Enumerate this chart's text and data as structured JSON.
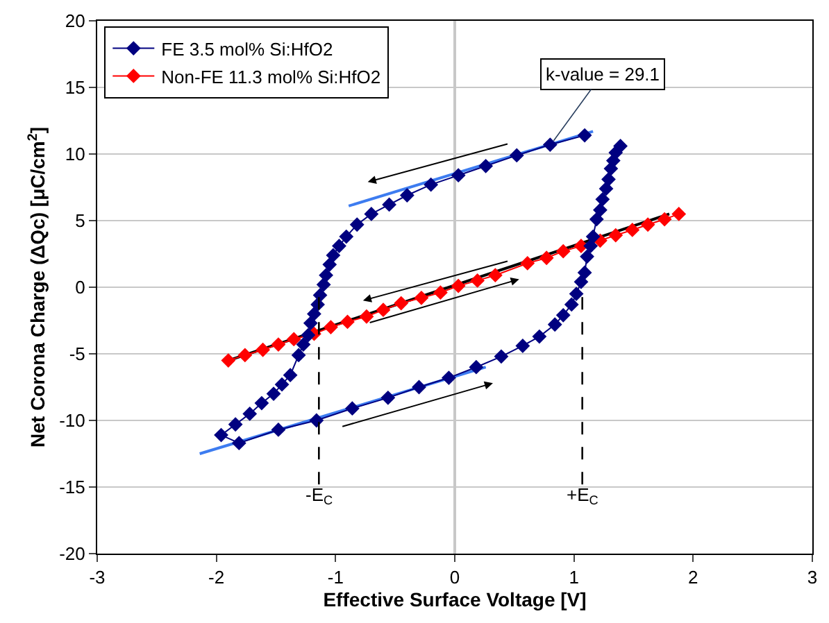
{
  "chart_data": {
    "type": "line",
    "xlabel": "Effective Surface Voltage [V]",
    "ylabel": "Net Corona Charge (ΔQc) [μC/cm$^{2}$]",
    "xlim": [
      -3,
      3
    ],
    "xticks": [
      -3,
      -2,
      -1,
      0,
      1,
      2,
      3
    ],
    "ylim": [
      -20,
      20
    ],
    "yticks": [
      -20,
      -15,
      -10,
      -5,
      0,
      5,
      10,
      15,
      20
    ],
    "grid": "y",
    "legend": "top left",
    "marker": "diamond",
    "line_style": "solid",
    "series": [
      {
        "name": "FE 3.5 mol% Si:HfO2",
        "color": "#000080",
        "x": [
          1.09,
          0.8,
          0.52,
          0.26,
          0.03,
          -0.2,
          -0.4,
          -0.55,
          -0.7,
          -0.82,
          -0.91,
          -0.97,
          -1.02,
          -1.05,
          -1.08,
          -1.1,
          -1.13,
          -1.15,
          -1.18,
          -1.21,
          -1.23,
          -1.27,
          -1.31,
          -1.38,
          -1.45,
          -1.52,
          -1.62,
          -1.72,
          -1.84,
          -1.96,
          -1.81,
          -1.48,
          -1.16,
          -0.86,
          -0.56,
          -0.3,
          -0.05,
          0.18,
          0.39,
          0.57,
          0.71,
          0.84,
          0.91,
          0.98,
          1.02,
          1.06,
          1.09,
          1.11,
          1.14,
          1.16,
          1.19,
          1.22,
          1.24,
          1.27,
          1.29,
          1.31,
          1.33,
          1.35,
          1.39
        ],
        "values": [
          11.4,
          10.7,
          9.9,
          9.1,
          8.4,
          7.7,
          6.9,
          6.2,
          5.5,
          4.7,
          3.8,
          3.1,
          2.4,
          1.7,
          0.9,
          0.2,
          -0.6,
          -1.3,
          -2.0,
          -2.7,
          -3.6,
          -4.3,
          -5.1,
          -6.6,
          -7.3,
          -8.0,
          -8.7,
          -9.5,
          -10.3,
          -11.1,
          -11.7,
          -10.7,
          -10.0,
          -9.1,
          -8.3,
          -7.5,
          -6.8,
          -6.0,
          -5.2,
          -4.4,
          -3.7,
          -2.8,
          -2.1,
          -1.3,
          -0.5,
          0.4,
          1.1,
          2.3,
          3.1,
          3.8,
          5.1,
          5.8,
          6.6,
          7.4,
          8.1,
          8.9,
          9.5,
          10.1,
          10.6
        ]
      },
      {
        "name": "Non-FE 11.3 mol% Si:HfO2",
        "color": "#ff0000",
        "x": [
          -1.9,
          -1.76,
          -1.61,
          -1.48,
          -1.35,
          -1.18,
          -1.04,
          -0.9,
          -0.74,
          -0.6,
          -0.45,
          -0.28,
          -0.12,
          0.03,
          0.19,
          0.34,
          0.61,
          0.77,
          0.91,
          1.06,
          1.22,
          1.35,
          1.49,
          1.62,
          1.76,
          1.88
        ],
        "values": [
          -5.5,
          -5.1,
          -4.7,
          -4.3,
          -3.9,
          -3.5,
          -3.0,
          -2.6,
          -2.2,
          -1.7,
          -1.2,
          -0.8,
          -0.4,
          0.1,
          0.5,
          0.9,
          1.8,
          2.2,
          2.7,
          3.1,
          3.5,
          3.9,
          4.3,
          4.7,
          5.1,
          5.5
        ]
      },
      {
        "type": "line",
        "marker": "none",
        "color": "#3d7cf0",
        "x": [
          -0.89,
          1.16
        ],
        "values": [
          6.1,
          11.7
        ]
      },
      {
        "type": "line",
        "marker": "none",
        "color": "#3d7cf0",
        "x": [
          -2.14,
          0.26
        ],
        "values": [
          -12.5,
          -6.0
        ]
      },
      {
        "type": "line",
        "marker": "none",
        "color": "#000000",
        "x": [
          -1.9,
          1.8
        ],
        "values": [
          -5.5,
          5.5
        ]
      }
    ],
    "ref_lines": [
      {
        "axis": "x",
        "value": -1.14,
        "label": "-E$_{C}$",
        "line_style": "dashed",
        "color": "#000000"
      },
      {
        "axis": "x",
        "value": 1.07,
        "label": "+E$_{C}$",
        "line_style": "dashed",
        "color": "#000000"
      }
    ],
    "annotations": [
      {
        "text": "k-value = 29.1",
        "x": 0.83,
        "y": 11.0
      }
    ]
  }
}
